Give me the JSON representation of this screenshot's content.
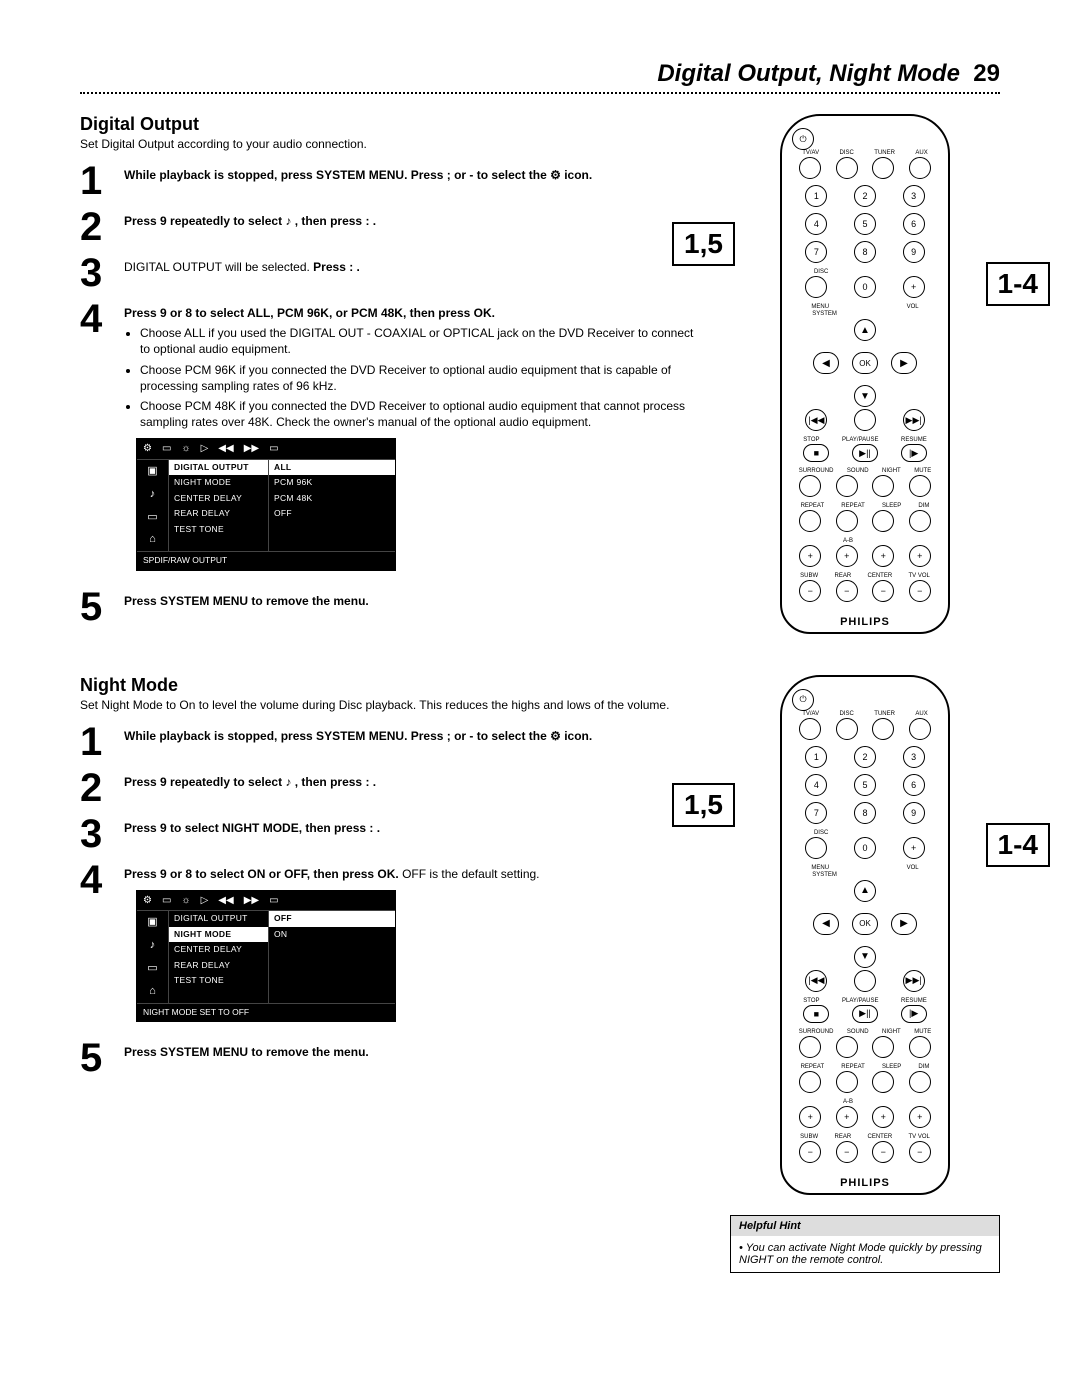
{
  "header": {
    "title": "Digital Output, Night Mode",
    "page_num": "29"
  },
  "section1": {
    "title": "Digital Output",
    "subtitle": "Set Digital Output according to your audio connection.",
    "steps": [
      {
        "num": "1",
        "html": "While playback is stopped, press SYSTEM MENU. Press ; or -  to select the  ⚙  icon."
      },
      {
        "num": "2",
        "html": "Press 9  repeatedly to select ♪ , then press : ."
      },
      {
        "num": "3",
        "html": "DIGITAL OUTPUT will be selected. Press : ."
      },
      {
        "num": "4",
        "html": "Press 9  or 8  to select ALL, PCM 96K, or PCM 48K, then press OK.",
        "bullets": [
          "Choose ALL if you used the DIGITAL OUT - COAXIAL or OPTICAL jack on the DVD Receiver to connect to optional audio equipment.",
          "Choose PCM 96K if you connected the DVD Receiver to optional audio equipment that is capable of processing sampling rates of 96 kHz.",
          "Choose PCM 48K if you connected the DVD Receiver to optional audio equipment that cannot process sampling rates over 48K. Check the owner's manual of the optional audio equipment."
        ]
      },
      {
        "num": "5",
        "html": "Press SYSTEM MENU to remove the menu."
      }
    ],
    "menu": {
      "col1": [
        "DIGITAL OUTPUT",
        "NIGHT MODE",
        "CENTER DELAY",
        "REAR DELAY",
        "TEST TONE"
      ],
      "col2": [
        "ALL",
        "PCM 96K",
        "PCM 48K",
        "OFF",
        ""
      ],
      "hl1": 0,
      "hl2": 0,
      "footer": "SPDIF/RAW OUTPUT"
    }
  },
  "section2": {
    "title": "Night Mode",
    "subtitle": "Set Night Mode to On to level the volume during Disc playback. This reduces the highs and lows of the volume.",
    "steps": [
      {
        "num": "1",
        "html": "While playback is stopped, press SYSTEM MENU. Press ; or -  to select the  ⚙  icon."
      },
      {
        "num": "2",
        "html": "Press 9  repeatedly to select ♪ , then press : ."
      },
      {
        "num": "3",
        "html": "Press 9  to select NIGHT MODE, then press : ."
      },
      {
        "num": "4",
        "html": "Press 9  or 8  to select ON or OFF, then press OK. OFF is the default setting."
      },
      {
        "num": "5",
        "html": "Press SYSTEM MENU to remove the menu."
      }
    ],
    "menu": {
      "col1": [
        "DIGITAL OUTPUT",
        "NIGHT MODE",
        "CENTER DELAY",
        "REAR DELAY",
        "TEST TONE"
      ],
      "col2": [
        "OFF",
        "ON",
        "",
        "",
        ""
      ],
      "hl1": 1,
      "hl2": 0,
      "footer": "NIGHT MODE SET TO OFF"
    }
  },
  "remote": {
    "top_labels": [
      "TV/AV",
      "DISC",
      "TUNER",
      "AUX"
    ],
    "numpad": [
      [
        "1",
        "2",
        "3"
      ],
      [
        "4",
        "5",
        "6"
      ],
      [
        "7",
        "8",
        "9"
      ]
    ],
    "row4_labels": [
      "DISC",
      "",
      "",
      ""
    ],
    "row4": [
      "",
      "0",
      "+"
    ],
    "menu_label_l": "MENU",
    "menu_label_r": "VOL",
    "system_label": "SYSTEM",
    "ok": "OK",
    "transport_labels": [
      "",
      "",
      "",
      ""
    ],
    "transport": [
      "|◀◀",
      "",
      "▶▶|"
    ],
    "stop_row_labels": [
      "STOP",
      "PLAY/PAUSE",
      "RESUME"
    ],
    "stop_row": [
      "■",
      "▶||",
      "|▶"
    ],
    "mode_labels1": [
      "SURROUND",
      "SOUND",
      "NIGHT",
      "MUTE"
    ],
    "mode_labels2": [
      "REPEAT",
      "REPEAT",
      "SLEEP",
      "DIM"
    ],
    "mode_sub": [
      "",
      "A-B",
      "",
      ""
    ],
    "vol_labels": [
      "SUBW",
      "REAR",
      "CENTER",
      "TV VOL"
    ],
    "brand": "PHILIPS"
  },
  "callouts": {
    "a": "1,5",
    "b": "1-4"
  },
  "hint": {
    "title": "Helpful Hint",
    "body": "You can activate Night Mode quickly by pressing NIGHT on the remote control."
  }
}
